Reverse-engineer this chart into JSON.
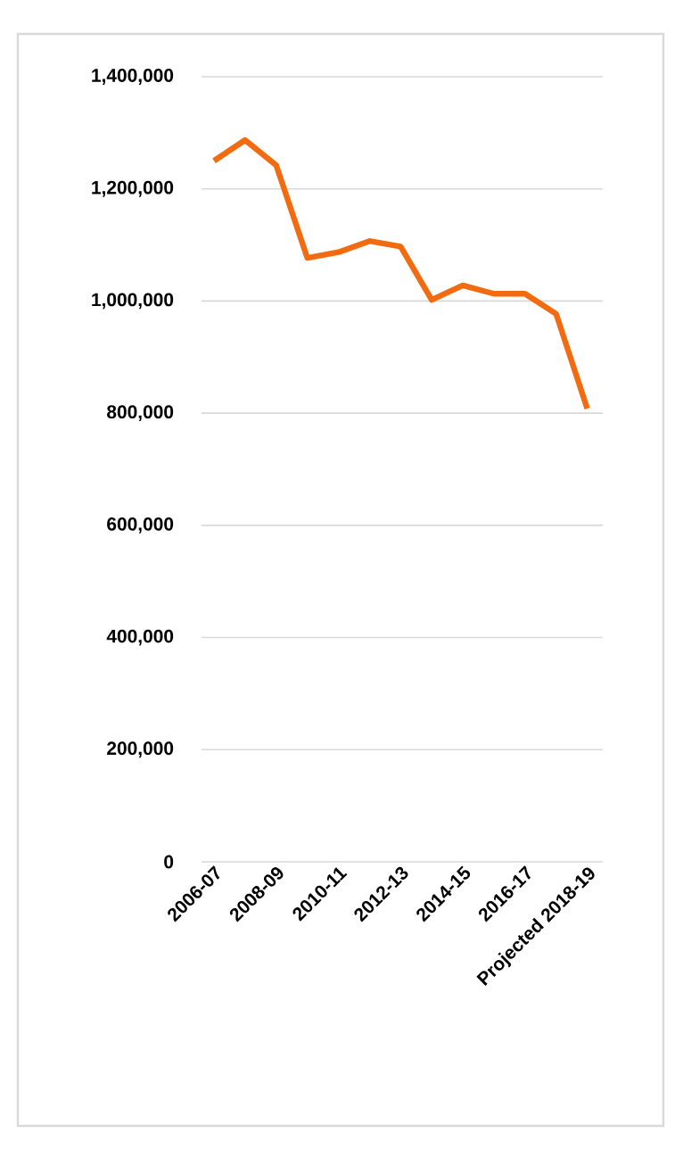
{
  "chart_data": {
    "type": "line",
    "categories": [
      "2006-07",
      null,
      "2008-09",
      null,
      "2010-11",
      null,
      "2012-13",
      null,
      "2014-15",
      null,
      "2016-17",
      null,
      "Projected 2018-19"
    ],
    "series": [
      {
        "color": "#f26b10",
        "values": [
          1250000,
          1287000,
          1242000,
          1077000,
          1087000,
          1107000,
          1097000,
          1002000,
          1028000,
          1013000,
          1013000,
          977000,
          808000
        ]
      }
    ],
    "ylim": [
      0,
      1400000
    ],
    "yticks": [
      0,
      {
        "value": 200000,
        "label": "200,000"
      },
      {
        "value": 400000,
        "label": "400,000"
      },
      {
        "value": 600000,
        "label": "600,000"
      },
      {
        "value": 800000,
        "label": "800,000"
      },
      {
        "value": 1000000,
        "label": "1,000,000"
      },
      {
        "value": 1200000,
        "label": "1,200,000"
      },
      {
        "value": 1400000,
        "label": "1,400,000"
      }
    ],
    "grid": "y",
    "marker": "none",
    "line_style": "solid"
  }
}
